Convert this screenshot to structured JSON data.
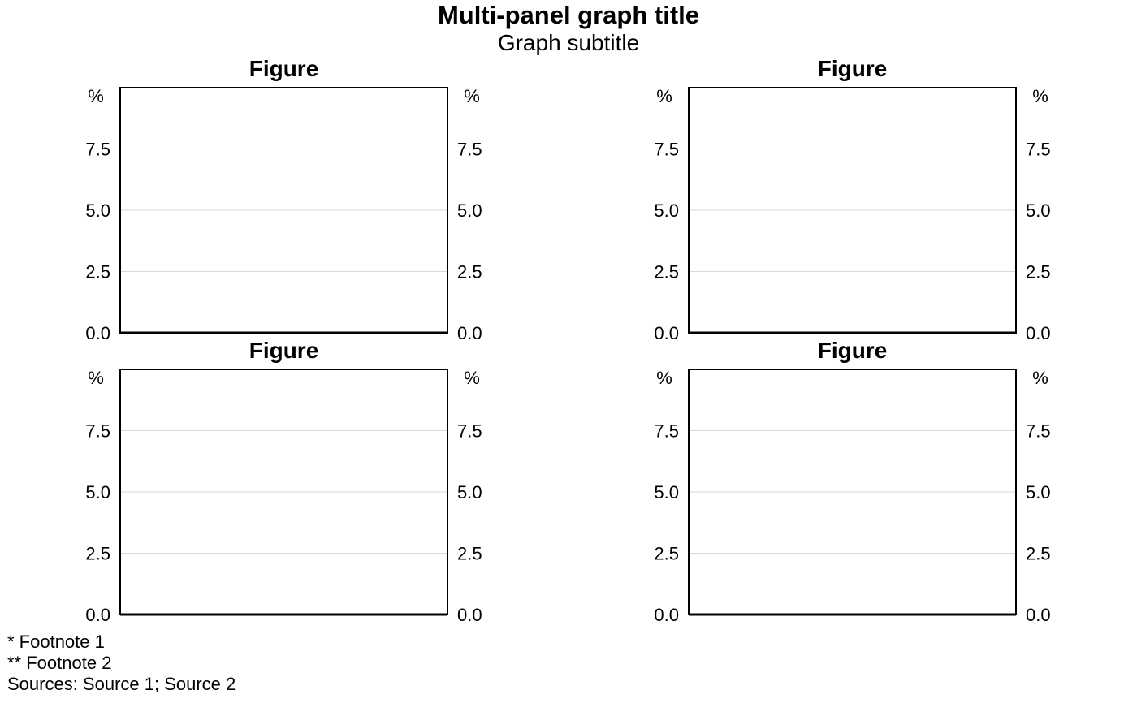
{
  "title": "Multi-panel graph title",
  "subtitle": "Graph subtitle",
  "footnotes": [
    "* Footnote 1",
    "** Footnote 2"
  ],
  "sources": "Sources: Source 1; Source 2",
  "colors": {
    "gridline": "#d9d9d9",
    "axis": "#000000"
  },
  "chart_data": [
    {
      "type": "line",
      "title": "Figure",
      "series": [],
      "ylim": [
        0,
        10
      ],
      "yticks": [
        "0.0",
        "2.5",
        "5.0",
        "7.5"
      ],
      "yunit_left": "%",
      "yunit_right": "%",
      "grid": true
    },
    {
      "type": "line",
      "title": "Figure",
      "series": [],
      "ylim": [
        0,
        10
      ],
      "yticks": [
        "0.0",
        "2.5",
        "5.0",
        "7.5"
      ],
      "yunit_left": "%",
      "yunit_right": "%",
      "grid": true
    },
    {
      "type": "line",
      "title": "Figure",
      "series": [],
      "ylim": [
        0,
        10
      ],
      "yticks": [
        "0.0",
        "2.5",
        "5.0",
        "7.5"
      ],
      "yunit_left": "%",
      "yunit_right": "%",
      "grid": true
    },
    {
      "type": "line",
      "title": "Figure",
      "series": [],
      "ylim": [
        0,
        10
      ],
      "yticks": [
        "0.0",
        "2.5",
        "5.0",
        "7.5"
      ],
      "yunit_left": "%",
      "yunit_right": "%",
      "grid": true
    }
  ]
}
